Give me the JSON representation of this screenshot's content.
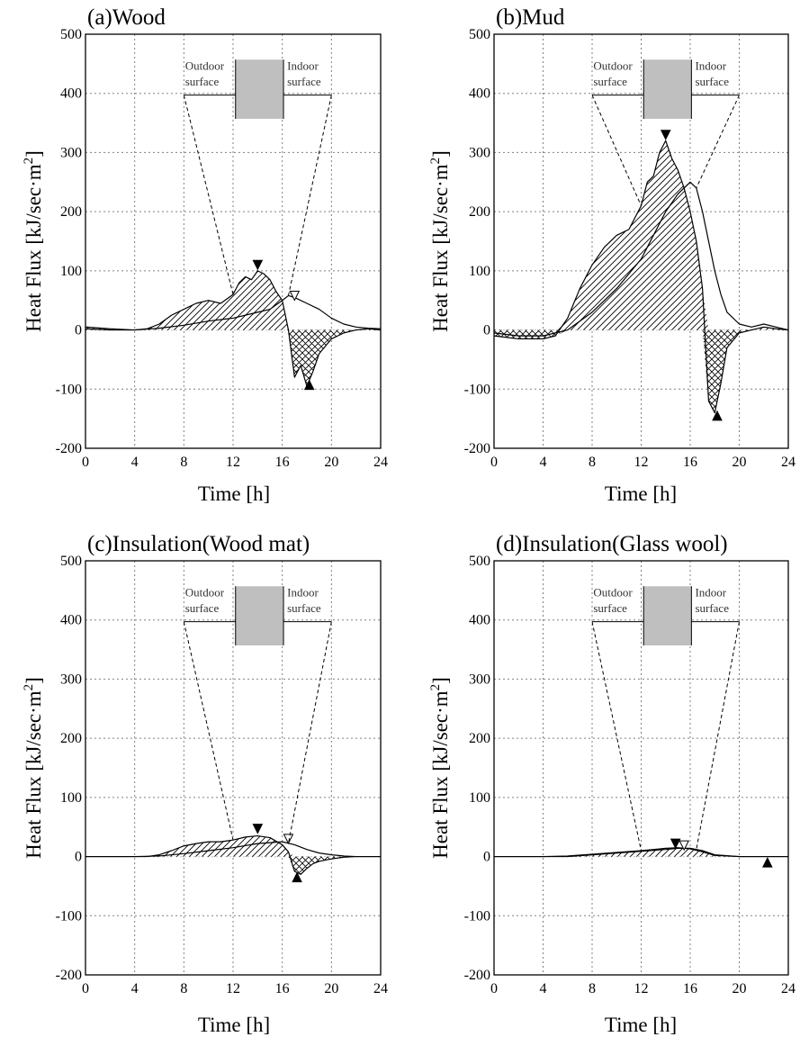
{
  "figure": {
    "xlabel": "Time [h]",
    "ylabel": "Heat Flux [kJ/sec·m²]",
    "ylabel_main": "Heat Flux [kJ/sec·m",
    "ylabel_sup": "2",
    "ylabel_end": "]",
    "outdoor_label": [
      "Outdoor",
      "surface"
    ],
    "indoor_label": [
      "Indoor",
      "surface"
    ],
    "colors": {
      "wall": "#bfbfbf",
      "line": "#000000",
      "grid": "#808080"
    }
  },
  "chart_data": [
    {
      "type": "line",
      "title": "(a)Wood",
      "xlabel": "Time [h]",
      "ylabel": "Heat Flux [kJ/sec·m²]",
      "xlim": [
        0,
        24
      ],
      "ylim": [
        -200,
        500
      ],
      "xticks": [
        0,
        4,
        8,
        12,
        16,
        20,
        24
      ],
      "yticks": [
        -200,
        -100,
        0,
        100,
        200,
        300,
        400,
        500
      ],
      "grid": true,
      "series": [
        {
          "marker": "filled",
          "x": [
            0,
            2,
            4,
            5,
            6,
            7,
            8,
            9,
            10,
            11,
            12,
            12.5,
            13,
            13.5,
            14,
            14.5,
            15,
            15.5,
            16,
            16.5,
            17,
            17.5,
            18,
            18.5,
            19,
            20,
            21,
            22,
            23,
            24
          ],
          "y": [
            5,
            2,
            0,
            2,
            10,
            25,
            35,
            45,
            50,
            45,
            60,
            80,
            90,
            85,
            100,
            95,
            85,
            65,
            50,
            0,
            -80,
            -60,
            -95,
            -70,
            -40,
            -15,
            -5,
            0,
            2,
            0
          ]
        },
        {
          "marker": "open",
          "x": [
            0,
            2,
            4,
            6,
            8,
            10,
            12,
            13,
            14,
            15,
            16,
            16.5,
            17,
            18,
            19,
            20,
            21,
            22,
            23,
            24
          ],
          "y": [
            2,
            0,
            0,
            3,
            8,
            15,
            20,
            25,
            30,
            35,
            50,
            58,
            55,
            45,
            35,
            20,
            10,
            5,
            3,
            2
          ]
        }
      ],
      "markers": [
        {
          "x": 14,
          "y": 110,
          "shape": "down-filled"
        },
        {
          "x": 17,
          "y": 58,
          "shape": "down-open"
        },
        {
          "x": 18.2,
          "y": -93,
          "shape": "up-filled"
        }
      ]
    },
    {
      "type": "line",
      "title": "(b)Mud",
      "xlabel": "Time [h]",
      "ylabel": "Heat Flux [kJ/sec·m²]",
      "xlim": [
        0,
        24
      ],
      "ylim": [
        -200,
        500
      ],
      "xticks": [
        0,
        4,
        8,
        12,
        16,
        20,
        24
      ],
      "yticks": [
        -200,
        -100,
        0,
        100,
        200,
        300,
        400,
        500
      ],
      "grid": true,
      "series": [
        {
          "marker": "filled",
          "x": [
            0,
            2,
            4,
            5,
            6,
            7,
            8,
            9,
            10,
            11,
            12,
            12.5,
            13,
            13.5,
            14,
            14.5,
            15,
            15.5,
            16,
            16.5,
            17,
            17.5,
            18,
            18.5,
            19,
            20,
            21,
            22,
            23,
            24
          ],
          "y": [
            -10,
            -15,
            -15,
            -10,
            20,
            70,
            110,
            140,
            160,
            170,
            210,
            250,
            260,
            300,
            320,
            290,
            270,
            240,
            200,
            150,
            70,
            -120,
            -140,
            -90,
            -30,
            -5,
            0,
            5,
            2,
            0
          ]
        },
        {
          "marker": "open",
          "x": [
            0,
            2,
            4,
            6,
            8,
            10,
            12,
            13,
            14,
            15,
            16,
            16.5,
            17,
            17.5,
            18,
            18.5,
            19,
            20,
            21,
            22,
            23,
            24
          ],
          "y": [
            -5,
            -10,
            -10,
            0,
            30,
            70,
            120,
            160,
            200,
            230,
            250,
            240,
            200,
            150,
            100,
            60,
            30,
            10,
            5,
            10,
            5,
            0
          ]
        }
      ],
      "markers": [
        {
          "x": 14,
          "y": 330,
          "shape": "down-filled"
        },
        {
          "x": 18.2,
          "y": -145,
          "shape": "up-filled"
        }
      ]
    },
    {
      "type": "line",
      "title": "(c)Insulation(Wood mat)",
      "xlabel": "Time [h]",
      "ylabel": "Heat Flux [kJ/sec·m²]",
      "xlim": [
        0,
        24
      ],
      "ylim": [
        -200,
        500
      ],
      "xticks": [
        0,
        4,
        8,
        12,
        16,
        20,
        24
      ],
      "yticks": [
        -200,
        -100,
        0,
        100,
        200,
        300,
        400,
        500
      ],
      "grid": true,
      "series": [
        {
          "marker": "filled",
          "x": [
            0,
            2,
            4,
            5,
            6,
            7,
            8,
            9,
            10,
            11,
            12,
            13,
            14,
            15,
            16,
            16.5,
            17,
            17.5,
            18,
            18.5,
            19,
            20,
            21,
            22,
            23,
            24
          ],
          "y": [
            0,
            0,
            0,
            0,
            3,
            10,
            18,
            22,
            25,
            25,
            28,
            33,
            35,
            32,
            20,
            8,
            -25,
            -30,
            -20,
            -12,
            -8,
            -4,
            -1,
            0,
            0,
            0
          ]
        },
        {
          "marker": "open",
          "x": [
            0,
            2,
            4,
            6,
            8,
            10,
            12,
            14,
            16,
            17,
            18,
            19,
            20,
            21,
            22,
            24
          ],
          "y": [
            0,
            0,
            0,
            1,
            5,
            10,
            15,
            22,
            25,
            20,
            12,
            6,
            3,
            1,
            0,
            0
          ]
        }
      ],
      "markers": [
        {
          "x": 14,
          "y": 47,
          "shape": "down-filled"
        },
        {
          "x": 16.5,
          "y": 30,
          "shape": "down-open"
        },
        {
          "x": 17.2,
          "y": -35,
          "shape": "up-filled"
        }
      ]
    },
    {
      "type": "line",
      "title": "(d)Insulation(Glass wool)",
      "xlabel": "Time [h]",
      "ylabel": "Heat Flux [kJ/sec·m²]",
      "xlim": [
        0,
        24
      ],
      "ylim": [
        -200,
        500
      ],
      "xticks": [
        0,
        4,
        8,
        12,
        16,
        20,
        24
      ],
      "yticks": [
        -200,
        -100,
        0,
        100,
        200,
        300,
        400,
        500
      ],
      "grid": true,
      "series": [
        {
          "marker": "filled",
          "x": [
            0,
            2,
            4,
            6,
            8,
            10,
            12,
            13,
            14,
            15,
            16,
            17,
            18,
            20,
            22,
            24
          ],
          "y": [
            0,
            0,
            0,
            1,
            4,
            7,
            10,
            12,
            14,
            15,
            13,
            8,
            2,
            0,
            0,
            0
          ]
        },
        {
          "marker": "open",
          "x": [
            0,
            4,
            6,
            8,
            10,
            12,
            14,
            15,
            16,
            17,
            18,
            20,
            24
          ],
          "y": [
            0,
            0,
            0,
            3,
            6,
            9,
            12,
            14,
            14,
            10,
            3,
            0,
            0
          ]
        }
      ],
      "markers": [
        {
          "x": 14.8,
          "y": 22,
          "shape": "down-filled"
        },
        {
          "x": 15.5,
          "y": 19,
          "shape": "down-open"
        },
        {
          "x": 22.3,
          "y": -10,
          "shape": "up-filled"
        }
      ]
    }
  ]
}
